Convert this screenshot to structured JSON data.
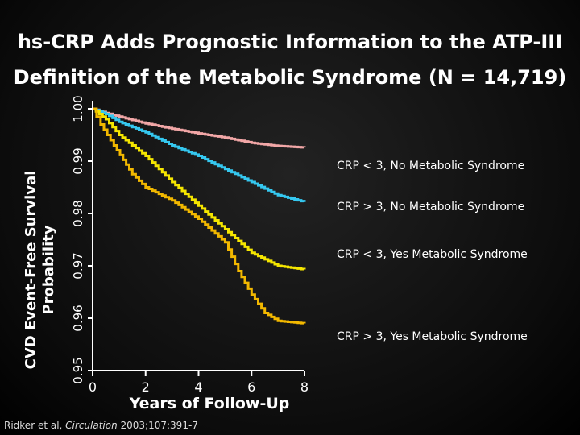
{
  "title_line1": "hs-CRP Adds Prognostic Information to the ATP-III",
  "title_line2": "Definition of the Metabolic Syndrome (N = 14,719)",
  "citation": {
    "authors": "Ridker et al, ",
    "journal": "Circulation",
    "ref": " 2003;107:391-7"
  },
  "chart_data": {
    "type": "line",
    "title": "hs-CRP Adds Prognostic Information to the ATP-III Definition of the Metabolic Syndrome (N = 14,719)",
    "xlabel": "Years of Follow-Up",
    "ylabel_line1": "CVD Event-Free Survival",
    "ylabel_line2": "Probability",
    "xlim": [
      0,
      8
    ],
    "ylim": [
      0.95,
      1.0
    ],
    "x_ticks": [
      0,
      2,
      4,
      6,
      8
    ],
    "x_tick_labels": [
      "0",
      "2",
      "4",
      "6",
      "8"
    ],
    "y_ticks": [
      0.95,
      0.96,
      0.97,
      0.98,
      0.99,
      1.0
    ],
    "y_tick_labels": [
      "0.95",
      "0.96",
      "0.97",
      "0.98",
      "0.99",
      "1.00"
    ],
    "series": [
      {
        "name": "CRP < 3, No Metabolic Syndrome",
        "color": "#f2a7a7",
        "points": [
          [
            0,
            1.0
          ],
          [
            0.5,
            0.9992
          ],
          [
            1,
            0.9985
          ],
          [
            2,
            0.9972
          ],
          [
            3,
            0.9962
          ],
          [
            4,
            0.9953
          ],
          [
            5,
            0.9945
          ],
          [
            6,
            0.9935
          ],
          [
            7,
            0.9929
          ],
          [
            8,
            0.9926
          ]
        ]
      },
      {
        "name": "CRP > 3, No Metabolic Syndrome",
        "color": "#35c8f0",
        "points": [
          [
            0,
            1.0
          ],
          [
            0.5,
            0.999
          ],
          [
            1,
            0.9975
          ],
          [
            2,
            0.9955
          ],
          [
            3,
            0.993
          ],
          [
            4,
            0.991
          ],
          [
            5,
            0.9885
          ],
          [
            6,
            0.986
          ],
          [
            7,
            0.9835
          ],
          [
            8,
            0.9822
          ]
        ]
      },
      {
        "name": "CRP < 3, Yes Metabolic Syndrome",
        "color": "#f5e600",
        "points": [
          [
            0,
            1.0
          ],
          [
            0.5,
            0.998
          ],
          [
            1,
            0.995
          ],
          [
            2,
            0.991
          ],
          [
            3,
            0.986
          ],
          [
            4,
            0.9815
          ],
          [
            5,
            0.977
          ],
          [
            6,
            0.9725
          ],
          [
            7,
            0.97
          ],
          [
            8,
            0.9693
          ]
        ]
      },
      {
        "name": "CRP > 3, Yes Metabolic Syndrome",
        "color": "#f2b800",
        "points": [
          [
            0,
            1.0
          ],
          [
            0.3,
            0.997
          ],
          [
            0.8,
            0.993
          ],
          [
            1.5,
            0.9875
          ],
          [
            2,
            0.985
          ],
          [
            3,
            0.9825
          ],
          [
            4,
            0.979
          ],
          [
            5,
            0.9745
          ],
          [
            5.5,
            0.969
          ],
          [
            6,
            0.9645
          ],
          [
            6.5,
            0.961
          ],
          [
            7,
            0.9595
          ],
          [
            8,
            0.959
          ]
        ]
      }
    ]
  }
}
